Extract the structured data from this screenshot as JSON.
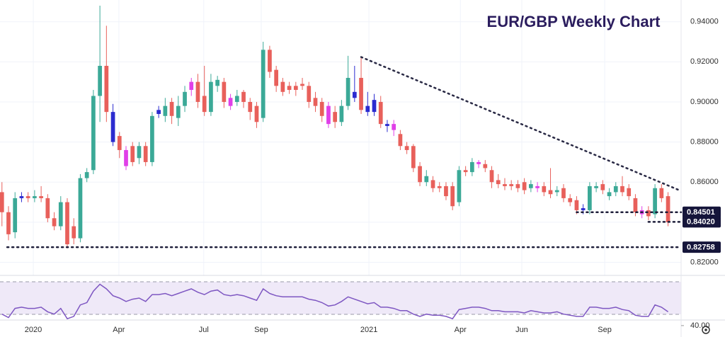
{
  "chart_data": {
    "type": "candlestick",
    "title": "EUR/GBP Weekly Chart",
    "palette": {
      "up": "#3ba997",
      "down": "#e8605b",
      "blue": "#2b2bd0",
      "pink": "#e03fe8"
    },
    "open": [
      0.855,
      0.845,
      0.835,
      0.852,
      0.853,
      0.852,
      0.853,
      0.852,
      0.842,
      0.838,
      0.85,
      0.838,
      0.832,
      0.862,
      0.866,
      0.903,
      0.918,
      0.895,
      0.883,
      0.876,
      0.878,
      0.872,
      0.878,
      0.87,
      0.894,
      0.893,
      0.9,
      0.892,
      0.898,
      0.91,
      0.91,
      0.903,
      0.895,
      0.908,
      0.91,
      0.902,
      0.9,
      0.905,
      0.9,
      0.898,
      0.892,
      0.926,
      0.916,
      0.91,
      0.908,
      0.908,
      0.909,
      0.908,
      0.902,
      0.9,
      0.898,
      0.895,
      0.89,
      0.898,
      0.902,
      0.912,
      0.898,
      0.895,
      0.9,
      0.889,
      0.889,
      0.884,
      0.878,
      0.878,
      0.868,
      0.86,
      0.861,
      0.858,
      0.858,
      0.858,
      0.85,
      0.866,
      0.865,
      0.87,
      0.869,
      0.866,
      0.861,
      0.859,
      0.859,
      0.859,
      0.86,
      0.857,
      0.858,
      0.858,
      0.856,
      0.855,
      0.857,
      0.852,
      0.851,
      0.847,
      0.846,
      0.857,
      0.859,
      0.853,
      0.855,
      0.858,
      0.857,
      0.852,
      0.846,
      0.846,
      0.844,
      0.857,
      0.853
    ],
    "high": [
      0.86,
      0.848,
      0.855,
      0.855,
      0.855,
      0.856,
      0.858,
      0.854,
      0.845,
      0.853,
      0.852,
      0.842,
      0.864,
      0.867,
      0.906,
      0.948,
      0.938,
      0.899,
      0.885,
      0.878,
      0.88,
      0.88,
      0.88,
      0.895,
      0.898,
      0.902,
      0.902,
      0.903,
      0.908,
      0.912,
      0.914,
      0.918,
      0.914,
      0.913,
      0.912,
      0.904,
      0.906,
      0.906,
      0.902,
      0.9,
      0.93,
      0.928,
      0.918,
      0.912,
      0.91,
      0.91,
      0.912,
      0.91,
      0.905,
      0.902,
      0.9,
      0.898,
      0.901,
      0.923,
      0.918,
      0.922,
      0.905,
      0.904,
      0.903,
      0.891,
      0.891,
      0.886,
      0.88,
      0.879,
      0.87,
      0.866,
      0.863,
      0.86,
      0.86,
      0.86,
      0.868,
      0.868,
      0.872,
      0.871,
      0.871,
      0.868,
      0.864,
      0.862,
      0.861,
      0.861,
      0.862,
      0.861,
      0.86,
      0.86,
      0.867,
      0.858,
      0.859,
      0.854,
      0.853,
      0.849,
      0.86,
      0.86,
      0.861,
      0.857,
      0.86,
      0.863,
      0.859,
      0.854,
      0.848,
      0.848,
      0.859,
      0.859,
      0.855
    ],
    "low": [
      0.838,
      0.831,
      0.832,
      0.85,
      0.85,
      0.85,
      0.85,
      0.84,
      0.836,
      0.836,
      0.827,
      0.829,
      0.83,
      0.86,
      0.864,
      0.89,
      0.89,
      0.878,
      0.872,
      0.866,
      0.868,
      0.869,
      0.868,
      0.868,
      0.892,
      0.89,
      0.889,
      0.888,
      0.895,
      0.903,
      0.897,
      0.893,
      0.893,
      0.905,
      0.897,
      0.896,
      0.898,
      0.897,
      0.891,
      0.887,
      0.89,
      0.912,
      0.905,
      0.903,
      0.904,
      0.903,
      0.906,
      0.897,
      0.895,
      0.89,
      0.887,
      0.887,
      0.888,
      0.896,
      0.9,
      0.894,
      0.893,
      0.893,
      0.887,
      0.885,
      0.883,
      0.876,
      0.874,
      0.865,
      0.858,
      0.858,
      0.855,
      0.855,
      0.851,
      0.846,
      0.848,
      0.863,
      0.863,
      0.867,
      0.865,
      0.857,
      0.857,
      0.856,
      0.856,
      0.855,
      0.854,
      0.855,
      0.855,
      0.853,
      0.852,
      0.853,
      0.85,
      0.848,
      0.844,
      0.844,
      0.844,
      0.855,
      0.854,
      0.851,
      0.853,
      0.853,
      0.851,
      0.843,
      0.842,
      0.841,
      0.842,
      0.85,
      0.838
    ],
    "close": [
      0.845,
      0.834,
      0.852,
      0.853,
      0.852,
      0.853,
      0.852,
      0.842,
      0.838,
      0.85,
      0.829,
      0.832,
      0.862,
      0.865,
      0.903,
      0.918,
      0.895,
      0.88,
      0.876,
      0.868,
      0.87,
      0.878,
      0.87,
      0.893,
      0.896,
      0.898,
      0.893,
      0.898,
      0.905,
      0.906,
      0.9,
      0.895,
      0.91,
      0.911,
      0.9,
      0.898,
      0.903,
      0.9,
      0.895,
      0.89,
      0.926,
      0.915,
      0.908,
      0.905,
      0.906,
      0.906,
      0.908,
      0.9,
      0.898,
      0.893,
      0.889,
      0.89,
      0.898,
      0.912,
      0.905,
      0.896,
      0.895,
      0.901,
      0.889,
      0.888,
      0.886,
      0.878,
      0.876,
      0.867,
      0.86,
      0.863,
      0.857,
      0.857,
      0.853,
      0.848,
      0.866,
      0.865,
      0.87,
      0.869,
      0.867,
      0.86,
      0.859,
      0.858,
      0.858,
      0.857,
      0.856,
      0.859,
      0.857,
      0.855,
      0.854,
      0.856,
      0.852,
      0.85,
      0.846,
      0.846,
      0.858,
      0.858,
      0.856,
      0.855,
      0.858,
      0.855,
      0.853,
      0.845,
      0.844,
      0.843,
      0.857,
      0.852,
      0.84
    ],
    "colors": [
      "down",
      "down",
      "up",
      "blue",
      "down",
      "up",
      "down",
      "down",
      "down",
      "up",
      "down",
      "down",
      "up",
      "up",
      "up",
      "up",
      "down",
      "blue",
      "down",
      "pink",
      "down",
      "up",
      "down",
      "up",
      "blue",
      "up",
      "down",
      "up",
      "up",
      "pink",
      "down",
      "down",
      "up",
      "up",
      "down",
      "pink",
      "up",
      "down",
      "down",
      "down",
      "up",
      "down",
      "down",
      "down",
      "down",
      "down",
      "down",
      "down",
      "down",
      "down",
      "pink",
      "down",
      "up",
      "up",
      "blue",
      "down",
      "blue",
      "blue",
      "down",
      "blue",
      "pink",
      "down",
      "down",
      "down",
      "down",
      "up",
      "down",
      "down",
      "down",
      "down",
      "up",
      "down",
      "up",
      "pink",
      "down",
      "down",
      "down",
      "down",
      "down",
      "down",
      "down",
      "up",
      "pink",
      "down",
      "down",
      "up",
      "down",
      "down",
      "down",
      "blue",
      "up",
      "up",
      "down",
      "up",
      "up",
      "down",
      "down",
      "down",
      "pink",
      "down",
      "up",
      "down",
      "down"
    ],
    "ylim": [
      0.8156,
      0.9472
    ],
    "yticks": [
      {
        "value": 0.82,
        "label": "0.82000"
      },
      {
        "value": 0.84,
        "label": "0.84000"
      },
      {
        "value": 0.86,
        "label": "0.86000"
      },
      {
        "value": 0.88,
        "label": "0.88000"
      },
      {
        "value": 0.9,
        "label": "0.90000"
      },
      {
        "value": 0.92,
        "label": "0.92000"
      },
      {
        "value": 0.94,
        "label": "0.94000"
      }
    ],
    "grid": true,
    "xlim": [
      -0.3,
      104
    ],
    "xticks": [
      {
        "value": 4.8,
        "label": "2020"
      },
      {
        "value": 17.9,
        "label": "Apr"
      },
      {
        "value": 30.9,
        "label": "Jul"
      },
      {
        "value": 39.7,
        "label": "Sep"
      },
      {
        "value": 56.2,
        "label": "2021"
      },
      {
        "value": 70.2,
        "label": "Apr"
      },
      {
        "value": 79.6,
        "label": "Jun"
      },
      {
        "value": 92.3,
        "label": "Sep"
      }
    ],
    "levels": [
      {
        "value": 0.84501,
        "label": "0.84501",
        "start": 88
      },
      {
        "value": 0.8402,
        "label": "0.84020",
        "start": 99
      },
      {
        "value": 0.82758,
        "label": "0.82758",
        "start": 0.8
      }
    ],
    "trendline": {
      "x": [
        55,
        104
      ],
      "y": [
        0.9224,
        0.8556
      ]
    },
    "rsi": {
      "color": "#7e57c2",
      "ylim": [
        35,
        80
      ],
      "yticks": [
        {
          "value": 40,
          "label": "40.00"
        }
      ],
      "values": [
        50,
        47,
        55,
        56,
        55,
        55,
        56,
        52,
        50,
        55,
        46,
        48,
        58,
        60,
        70,
        76,
        72,
        66,
        64,
        61,
        63,
        64,
        61,
        67,
        67,
        68,
        66,
        68,
        70,
        72,
        69,
        67,
        70,
        71,
        67,
        66,
        67,
        66,
        64,
        62,
        72,
        68,
        66,
        65,
        65,
        65,
        65,
        63,
        62,
        60,
        57,
        58,
        61,
        65,
        63,
        61,
        59,
        60,
        56,
        56,
        55,
        53,
        53,
        50,
        48,
        50,
        49,
        49,
        48,
        46,
        54,
        55,
        56,
        56,
        55,
        53,
        53,
        52,
        52,
        52,
        51,
        53,
        52,
        51,
        51,
        52,
        50,
        49,
        48,
        48,
        56,
        56,
        55,
        55,
        56,
        54,
        53,
        49,
        48,
        48,
        58,
        56,
        52
      ]
    }
  }
}
